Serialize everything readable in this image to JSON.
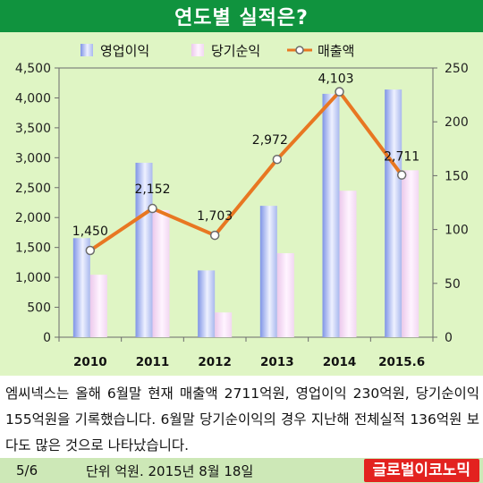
{
  "header": {
    "title": "연도별 실적은?"
  },
  "legend": {
    "items": [
      "영업이익",
      "당기순익",
      "매출액"
    ]
  },
  "description": "엠씨넥스는 올해 6월말 현재 매출액 2711억원, 영업이익 230억원, 당기순이익 155억원을 기록했습니다. 6월말 당기순이익의 경우 지난해 전체실적 136억원 보다도 많은 것으로 나타났습니다.",
  "footer": {
    "page": "5/6",
    "note": "단위 억원. 2015년 8월 18일",
    "brand": "글로벌이코노믹"
  },
  "colors": {
    "title_bg": "#10933e",
    "plot_bg": "#dff5c4",
    "bar_op": "#a9b8ee",
    "bar_net": "#f2d7f2",
    "line": "#e87722",
    "brand": "#e3221f"
  },
  "chart_data": {
    "type": "bar",
    "categories": [
      "2010",
      "2011",
      "2012",
      "2013",
      "2014",
      "2015.6"
    ],
    "series": [
      {
        "name": "영업이익",
        "type": "bar",
        "axis": "right",
        "values": [
          92,
          162,
          62,
          122,
          226,
          230
        ]
      },
      {
        "name": "당기순익",
        "type": "bar",
        "axis": "right",
        "values": [
          58,
          118,
          23,
          78,
          136,
          155
        ]
      },
      {
        "name": "매출액",
        "type": "line",
        "axis": "left",
        "values": [
          1450,
          2152,
          1703,
          2972,
          4103,
          2711
        ],
        "data_labels": [
          "1,450",
          "2,152",
          "1,703",
          "2,972",
          "4,103",
          "2,711"
        ]
      }
    ],
    "y_left": {
      "ylim": [
        0,
        4500
      ],
      "ticks": [
        "0",
        "500",
        "1,000",
        "1,500",
        "2,000",
        "2,500",
        "3,000",
        "3,500",
        "4,000",
        "4,500"
      ]
    },
    "y_right": {
      "ylim": [
        0,
        250
      ],
      "ticks": [
        "0",
        "50",
        "100",
        "150",
        "200",
        "250"
      ]
    },
    "legend_position": "top",
    "grid": false
  }
}
